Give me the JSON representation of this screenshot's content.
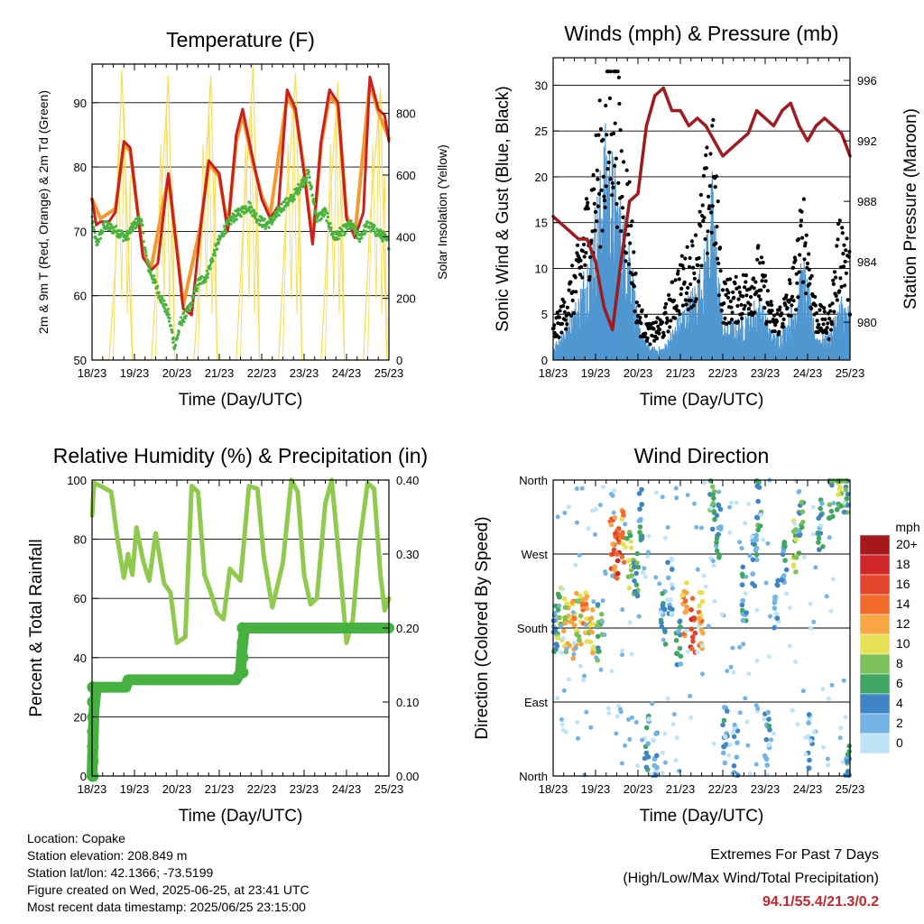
{
  "temp_panel": {
    "title": "Temperature (F)",
    "xlabel": "Time (Day/UTC)",
    "ylabel_left": "2m & 9m T (Red, Orange) & 2m Td (Green)",
    "ylabel_right": "Solar Insolation (Yellow)"
  },
  "wind_panel": {
    "title": "Winds (mph) & Pressure (mb)",
    "xlabel": "Time (Day/UTC)",
    "ylabel_left": "Sonic Wind & Gust (Blue, Black)",
    "ylabel_right": "Station Pressure (Maroon)"
  },
  "rh_panel": {
    "title": "Relative Humidity (%) & Precipitation (in)",
    "xlabel": "Time (Day/UTC)",
    "ylabel_left": "Percent & Total Rainfall"
  },
  "dir_panel": {
    "title": "Wind Direction",
    "xlabel": "Time (Day/UTC)",
    "ylabel_left": "Direction (Colored By Speed)",
    "legend_title": "mph"
  },
  "info": {
    "location": "Location: Copake",
    "elevation": "Station elevation: 208.849 m",
    "latlon": "Station lat/lon: 42.1366; -73.5199",
    "created": "Figure created on Wed, 2025-06-25, at 23:41 UTC",
    "recent": "Most recent data timestamp: 2025/06/25 23:15:00",
    "extremes_title": "Extremes For Past 7 Days",
    "extremes_subtitle": "(High/Low/Max Wind/Total Precipitation)",
    "extremes_value": "94.1/55.4/21.3/0.2"
  },
  "colors": {
    "temp2m": "#c8201e",
    "temp9m": "#f29a2e",
    "dewpoint": "#4bb33f",
    "solar": "#f7dc56",
    "wind": "#4f97d1",
    "gust": "#000000",
    "pressure": "#9e1b1f",
    "rh": "#8fca4e",
    "precip": "#46b040"
  },
  "chart_data": [
    {
      "type": "line",
      "title": "Temperature (F)",
      "xlabel": "Time (Day/UTC)",
      "ylabel": "2m & 9m T (Red, Orange) & 2m Td (Green)",
      "ylabel_right": "Solar Insolation (Yellow)",
      "x_ticks": [
        "18/23",
        "19/23",
        "20/23",
        "21/23",
        "22/23",
        "23/23",
        "24/23",
        "25/23"
      ],
      "xlim": [
        0,
        7
      ],
      "ylim": [
        50,
        96
      ],
      "y_ticks": [
        50,
        60,
        70,
        80,
        90
      ],
      "ylim_right": [
        0,
        960
      ],
      "y_ticks_right": [
        0,
        200,
        400,
        600,
        800
      ],
      "grid": "horizontal",
      "series": [
        {
          "name": "2m T",
          "axis": "left",
          "x": [
            0,
            0.1,
            0.2,
            0.4,
            0.55,
            0.75,
            0.9,
            1.2,
            1.4,
            1.55,
            1.8,
            2.0,
            2.15,
            2.35,
            2.55,
            2.75,
            3.0,
            3.2,
            3.4,
            3.55,
            3.8,
            4.0,
            4.2,
            4.4,
            4.6,
            4.8,
            5.0,
            5.2,
            5.4,
            5.6,
            5.8,
            6.0,
            6.2,
            6.4,
            6.55,
            6.75,
            6.9,
            7.0
          ],
          "y": [
            75,
            71,
            71.5,
            71.5,
            73,
            84,
            83,
            66,
            64,
            65,
            79,
            67,
            58,
            57,
            70,
            81,
            79,
            70,
            85,
            89,
            81,
            75,
            72,
            74,
            92,
            89,
            79,
            68,
            84,
            92,
            90,
            72,
            69,
            73,
            94,
            89,
            88,
            84
          ]
        },
        {
          "name": "9m T",
          "axis": "left",
          "x": [
            0,
            0.2,
            0.55,
            0.75,
            0.9,
            1.2,
            1.4,
            1.8,
            2.0,
            2.15,
            2.55,
            2.75,
            3.0,
            3.2,
            3.4,
            3.55,
            3.8,
            4.0,
            4.2,
            4.6,
            4.8,
            5.0,
            5.2,
            5.4,
            5.6,
            5.8,
            6.0,
            6.2,
            6.55,
            6.75,
            7.0
          ],
          "y": [
            75,
            72,
            73.5,
            83.5,
            82.5,
            66.5,
            64.5,
            78.5,
            67.5,
            58.5,
            70.5,
            80.5,
            78.5,
            70.5,
            84,
            88,
            80.5,
            75.5,
            72.5,
            91,
            88.5,
            79.5,
            68.5,
            83.5,
            91,
            89.5,
            72.5,
            69.5,
            93,
            88.5,
            84.5
          ]
        },
        {
          "name": "2m Td",
          "axis": "left",
          "x": [
            0,
            0.1,
            0.3,
            0.6,
            0.8,
            1.0,
            1.15,
            1.3,
            1.6,
            1.8,
            1.95,
            2.1,
            2.3,
            2.5,
            2.7,
            2.9,
            3.1,
            3.3,
            3.5,
            3.7,
            3.9,
            4.1,
            4.3,
            4.5,
            4.7,
            4.9,
            5.1,
            5.3,
            5.5,
            5.7,
            5.9,
            6.1,
            6.3,
            6.5,
            6.7,
            6.9,
            7.0
          ],
          "y": [
            72,
            68,
            71,
            70,
            69,
            71,
            72,
            65,
            60,
            57,
            52,
            56,
            58,
            62,
            63,
            67,
            70,
            72,
            73,
            74,
            72,
            71,
            72,
            74,
            75,
            77,
            79,
            72,
            73,
            69,
            70,
            71,
            69,
            71,
            70,
            69,
            68
          ]
        },
        {
          "name": "Solar Insolation",
          "axis": "right",
          "x": [
            0,
            0.4,
            0.55,
            0.7,
            0.95,
            1.4,
            1.55,
            1.8,
            1.95,
            2.4,
            2.55,
            2.8,
            2.95,
            3.4,
            3.55,
            3.8,
            3.95,
            4.4,
            4.55,
            4.8,
            4.95,
            5.4,
            5.55,
            5.8,
            5.95,
            6.4,
            6.55,
            6.8,
            6.95,
            7.0
          ],
          "y": [
            0,
            0,
            300,
            940,
            0,
            0,
            350,
            920,
            0,
            0,
            300,
            920,
            0,
            0,
            400,
            950,
            0,
            0,
            420,
            930,
            0,
            0,
            380,
            900,
            0,
            0,
            450,
            880,
            0,
            0
          ]
        }
      ]
    },
    {
      "type": "scatter",
      "title": "Winds (mph) & Pressure (mb)",
      "xlabel": "Time (Day/UTC)",
      "ylabel": "Sonic Wind & Gust (Blue, Black)",
      "ylabel_right": "Station Pressure (Maroon)",
      "x_ticks": [
        "18/23",
        "19/23",
        "20/23",
        "21/23",
        "22/23",
        "23/23",
        "24/23",
        "25/23"
      ],
      "xlim": [
        0,
        7
      ],
      "ylim": [
        0,
        33
      ],
      "y_ticks": [
        0,
        5,
        10,
        15,
        20,
        25,
        30
      ],
      "ylim_right": [
        977.5,
        997.5
      ],
      "y_ticks_right": [
        980,
        984,
        988,
        992,
        996
      ],
      "grid": "horizontal",
      "series": [
        {
          "name": "Sonic Wind",
          "axis": "left",
          "x": [
            0,
            0.3,
            0.6,
            0.9,
            1.1,
            1.25,
            1.45,
            1.6,
            1.8,
            2.0,
            2.3,
            2.6,
            2.9,
            3.2,
            3.35,
            3.55,
            3.75,
            4.0,
            4.3,
            4.6,
            4.85,
            5.2,
            5.5,
            5.7,
            5.9,
            6.2,
            6.5,
            6.8,
            7.0
          ],
          "y": [
            1,
            3,
            5,
            10,
            14,
            18,
            15,
            12,
            10,
            3,
            1,
            1,
            3,
            5,
            6,
            8,
            14,
            3,
            3,
            4,
            5,
            2,
            3,
            5,
            8,
            2,
            2,
            5,
            4
          ]
        },
        {
          "name": "Gust",
          "axis": "left",
          "x": [
            0,
            0.3,
            0.6,
            0.9,
            1.1,
            1.25,
            1.45,
            1.6,
            1.8,
            2.0,
            2.3,
            2.6,
            2.9,
            3.2,
            3.35,
            3.55,
            3.75,
            4.0,
            4.3,
            4.6,
            4.85,
            5.2,
            5.5,
            5.7,
            5.9,
            6.2,
            6.5,
            6.8,
            7.0
          ],
          "y": [
            3,
            6,
            10,
            17,
            22,
            25,
            30,
            21,
            16,
            5,
            3,
            4,
            8,
            10,
            11,
            16,
            22,
            7,
            7,
            8,
            10,
            4,
            6,
            9,
            15,
            5,
            4,
            14,
            9
          ]
        },
        {
          "name": "Station Pressure",
          "axis": "right",
          "x": [
            0,
            0.2,
            0.4,
            0.6,
            0.8,
            1.0,
            1.2,
            1.4,
            1.6,
            1.8,
            2.0,
            2.2,
            2.4,
            2.6,
            2.8,
            3.0,
            3.2,
            3.4,
            3.6,
            3.8,
            4.0,
            4.2,
            4.4,
            4.6,
            4.8,
            5.0,
            5.2,
            5.4,
            5.6,
            5.8,
            6.0,
            6.2,
            6.4,
            6.6,
            6.8,
            7.0
          ],
          "y": [
            987,
            986.5,
            986,
            985.5,
            985.5,
            984,
            981,
            979.5,
            984,
            988,
            988.5,
            993,
            995,
            995.5,
            994,
            994,
            993,
            993.5,
            993,
            992,
            991,
            991.5,
            992,
            992.5,
            994,
            993.5,
            993,
            994,
            994.5,
            993,
            992,
            993,
            993.5,
            993,
            992.5,
            991
          ]
        }
      ]
    },
    {
      "type": "line",
      "title": "Relative Humidity (%) & Precipitation (in)",
      "xlabel": "Time (Day/UTC)",
      "ylabel": "Percent & Total Rainfall",
      "x_ticks": [
        "18/23",
        "19/23",
        "20/23",
        "21/23",
        "22/23",
        "23/23",
        "24/23",
        "25/23"
      ],
      "xlim": [
        0,
        7
      ],
      "ylim": [
        0,
        100
      ],
      "y_ticks": [
        0,
        20,
        40,
        60,
        80,
        100
      ],
      "ylim_right": [
        0,
        0.4
      ],
      "y_ticks_right": [
        0.0,
        0.1,
        0.2,
        0.3,
        0.4
      ],
      "y_ticks_right_labels": [
        "0.00",
        "0.10",
        "0.20",
        "0.30",
        "0.40"
      ],
      "grid": "horizontal",
      "series": [
        {
          "name": "Relative Humidity",
          "axis": "left",
          "x": [
            0,
            0.05,
            0.2,
            0.45,
            0.6,
            0.75,
            0.85,
            0.95,
            1.05,
            1.2,
            1.35,
            1.5,
            1.7,
            1.85,
            2.0,
            2.2,
            2.35,
            2.5,
            2.65,
            2.8,
            2.95,
            3.1,
            3.25,
            3.5,
            3.7,
            3.9,
            4.05,
            4.25,
            4.5,
            4.7,
            4.85,
            5.0,
            5.15,
            5.3,
            5.5,
            5.65,
            5.85,
            6.0,
            6.15,
            6.3,
            6.5,
            6.65,
            6.8,
            6.9,
            7.0
          ],
          "y": [
            88,
            99,
            98,
            96,
            80,
            67,
            75,
            68,
            84,
            73,
            66,
            82,
            65,
            62,
            45,
            47,
            98,
            96,
            68,
            62,
            55,
            53,
            70,
            66,
            98,
            97,
            74,
            57,
            72,
            100,
            96,
            68,
            58,
            60,
            92,
            100,
            70,
            45,
            53,
            78,
            99,
            97,
            68,
            56,
            60
          ]
        },
        {
          "name": "Total Precipitation",
          "axis": "right",
          "x": [
            0,
            0.02,
            0.05,
            0.1,
            0.3,
            0.6,
            0.8,
            0.85,
            1.5,
            2.0,
            2.5,
            3.0,
            3.4,
            3.5,
            3.55,
            3.6,
            4.5,
            5.5,
            6.5,
            7.0
          ],
          "y": [
            0.0,
            0.04,
            0.09,
            0.12,
            0.12,
            0.12,
            0.12,
            0.13,
            0.13,
            0.13,
            0.13,
            0.13,
            0.13,
            0.14,
            0.18,
            0.2,
            0.2,
            0.2,
            0.2,
            0.2
          ]
        }
      ]
    },
    {
      "type": "scatter",
      "title": "Wind Direction",
      "xlabel": "Time (Day/UTC)",
      "ylabel": "Direction (Colored By Speed)",
      "x_ticks": [
        "18/23",
        "19/23",
        "20/23",
        "21/23",
        "22/23",
        "23/23",
        "24/23",
        "25/23"
      ],
      "xlim": [
        0,
        7
      ],
      "ylim": [
        0,
        360
      ],
      "y_ticks": [
        0,
        90,
        180,
        270,
        360
      ],
      "y_tick_labels": [
        "North",
        "East",
        "South",
        "West",
        "North"
      ],
      "grid": "horizontal",
      "legend": {
        "title": "mph",
        "position": "right",
        "labels": [
          "20+",
          "18",
          "16",
          "14",
          "12",
          "10",
          "8",
          "6",
          "4",
          "2",
          "0"
        ],
        "colors": [
          "#a5191c",
          "#cf2727",
          "#e2452b",
          "#f06a2c",
          "#f8a543",
          "#e5e055",
          "#7cc05a",
          "#3fa763",
          "#3f84c4",
          "#74b3e3",
          "#bfe3f7"
        ]
      },
      "series": [
        {
          "name": "Direction",
          "x": [
            0.05,
            0.15,
            0.3,
            0.45,
            0.6,
            0.75,
            0.9,
            1.1,
            1.4,
            1.5,
            1.65,
            1.8,
            1.95,
            2.05,
            2.2,
            2.4,
            2.6,
            2.75,
            2.95,
            3.1,
            3.3,
            3.5,
            3.75,
            3.9,
            4.05,
            4.3,
            4.5,
            4.75,
            4.85,
            5.05,
            5.25,
            5.45,
            5.7,
            5.85,
            6.05,
            6.3,
            6.55,
            6.75,
            6.9,
            6.95
          ],
          "y": [
            180,
            195,
            185,
            178,
            190,
            188,
            182,
            175,
            280,
            270,
            290,
            262,
            250,
            320,
            40,
            20,
            190,
            230,
            170,
            200,
            185,
            190,
            330,
            300,
            50,
            30,
            220,
            260,
            330,
            45,
            210,
            250,
            280,
            300,
            40,
            310,
            345,
            355,
            350,
            10
          ],
          "speed": [
            3,
            8,
            10,
            12,
            10,
            12,
            10,
            6,
            14,
            16,
            12,
            8,
            6,
            4,
            3,
            2,
            4,
            2,
            4,
            12,
            16,
            12,
            6,
            4,
            3,
            2,
            4,
            4,
            6,
            3,
            2,
            4,
            8,
            6,
            3,
            4,
            6,
            8,
            6,
            5
          ]
        }
      ]
    }
  ]
}
